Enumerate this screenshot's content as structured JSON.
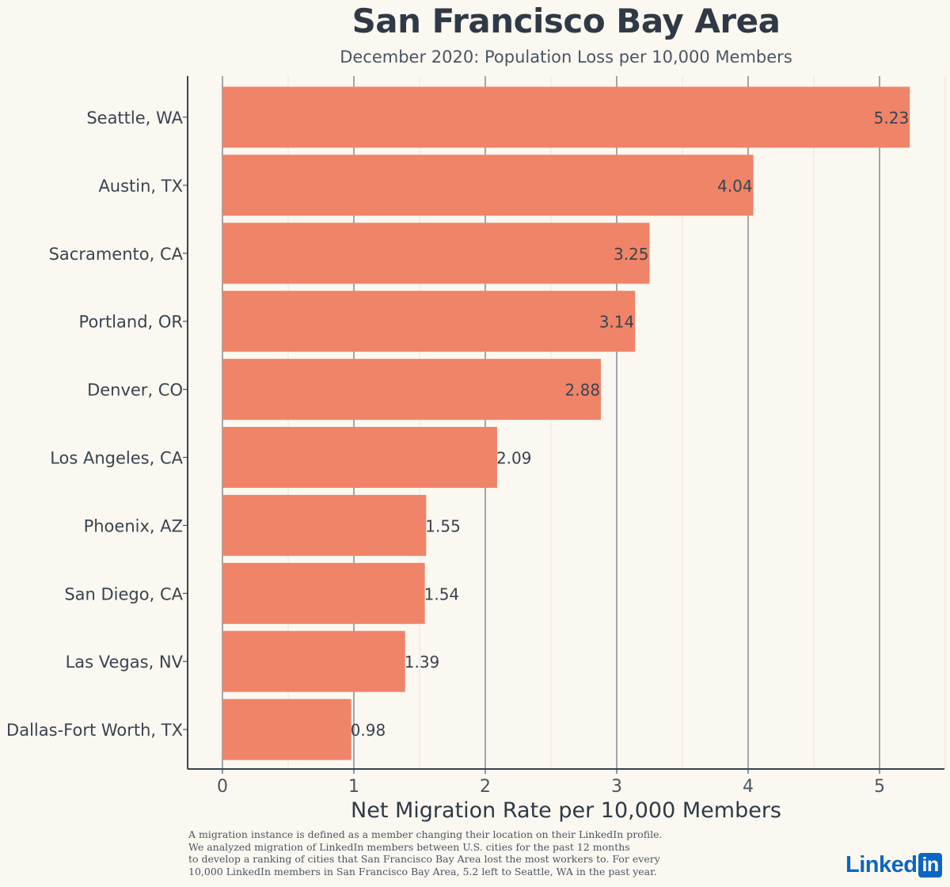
{
  "chart_data": {
    "type": "bar",
    "orientation": "horizontal",
    "title": "San Francisco Bay Area",
    "subtitle": "December 2020: Population Loss per 10,000 Members",
    "xlabel": "Net Migration Rate per 10,000 Members",
    "ylabel": "",
    "categories": [
      "Seattle, WA",
      "Austin, TX",
      "Sacramento, CA",
      "Portland, OR",
      "Denver, CO",
      "Los Angeles, CA",
      "Phoenix, AZ",
      "San Diego, CA",
      "Las Vegas, NV",
      "Dallas-Fort Worth, TX"
    ],
    "values": [
      5.23,
      4.04,
      3.25,
      3.14,
      2.88,
      2.09,
      1.55,
      1.54,
      1.39,
      0.98
    ],
    "data_labels": [
      "5.23",
      "4.04",
      "3.25",
      "3.14",
      "2.88",
      "2.09",
      "1.55",
      "1.54",
      "1.39",
      "0.98"
    ],
    "xlim": [
      -0.27,
      5.5
    ],
    "xticks": [
      0,
      1,
      2,
      3,
      4,
      5
    ],
    "xtick_labels": [
      "0",
      "1",
      "2",
      "3",
      "4",
      "5"
    ],
    "grid": true,
    "bar_color": "#ef8468"
  },
  "footnote": [
    "A migration instance is defined as a member changing their location on their LinkedIn profile.",
    "We analyzed migration of LinkedIn members between U.S. cities for the past 12 months",
    "to develop a ranking of cities that San Francisco Bay Area lost the most workers to. For every",
    "10,000 LinkedIn members in San Francisco Bay Area, 5.2 left to Seattle, WA in the past year."
  ],
  "logo": {
    "word": "Linked",
    "box": "in"
  }
}
